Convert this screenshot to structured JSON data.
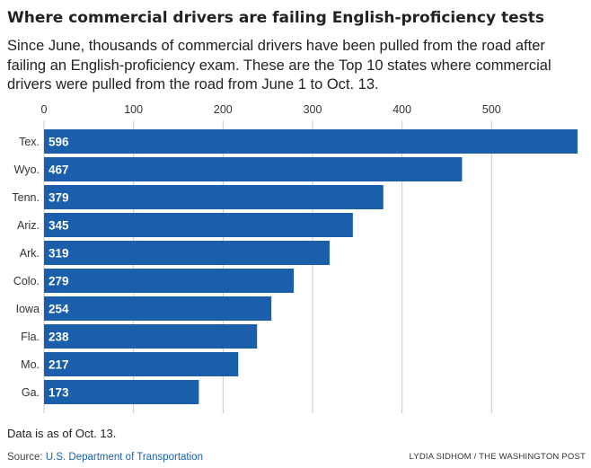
{
  "header": {
    "title": "Where commercial drivers are failing English-proficiency tests",
    "subtitle": "Since June, thousands of commercial drivers have been pulled from the road after failing an English-proficiency exam. These are the Top 10 states where commercial drivers were pulled from the road from June 1 to Oct. 13."
  },
  "footer": {
    "note": "Data is as of Oct. 13.",
    "source_prefix": "Source: ",
    "source_name": "U.S. Department of Transportation",
    "credit": "LYDIA SIDHOM / THE WASHINGTON POST"
  },
  "colors": {
    "bar": "#1b5eab",
    "gridline": "#c8c8c8",
    "link": "#1a5fa8"
  },
  "chart_data": {
    "type": "bar",
    "orientation": "horizontal",
    "title": "Where commercial drivers are failing English-proficiency tests",
    "xlabel": "",
    "ylabel": "",
    "xlim": [
      0,
      600
    ],
    "x_ticks": [
      0,
      100,
      200,
      300,
      400,
      500
    ],
    "x_axis_position": "top",
    "grid": true,
    "legend": "none",
    "categories": [
      "Tex.",
      "Wyo.",
      "Tenn.",
      "Ariz.",
      "Ark.",
      "Colo.",
      "Iowa",
      "Fla.",
      "Mo.",
      "Ga."
    ],
    "values": [
      596,
      467,
      379,
      345,
      319,
      279,
      254,
      238,
      217,
      173
    ]
  }
}
